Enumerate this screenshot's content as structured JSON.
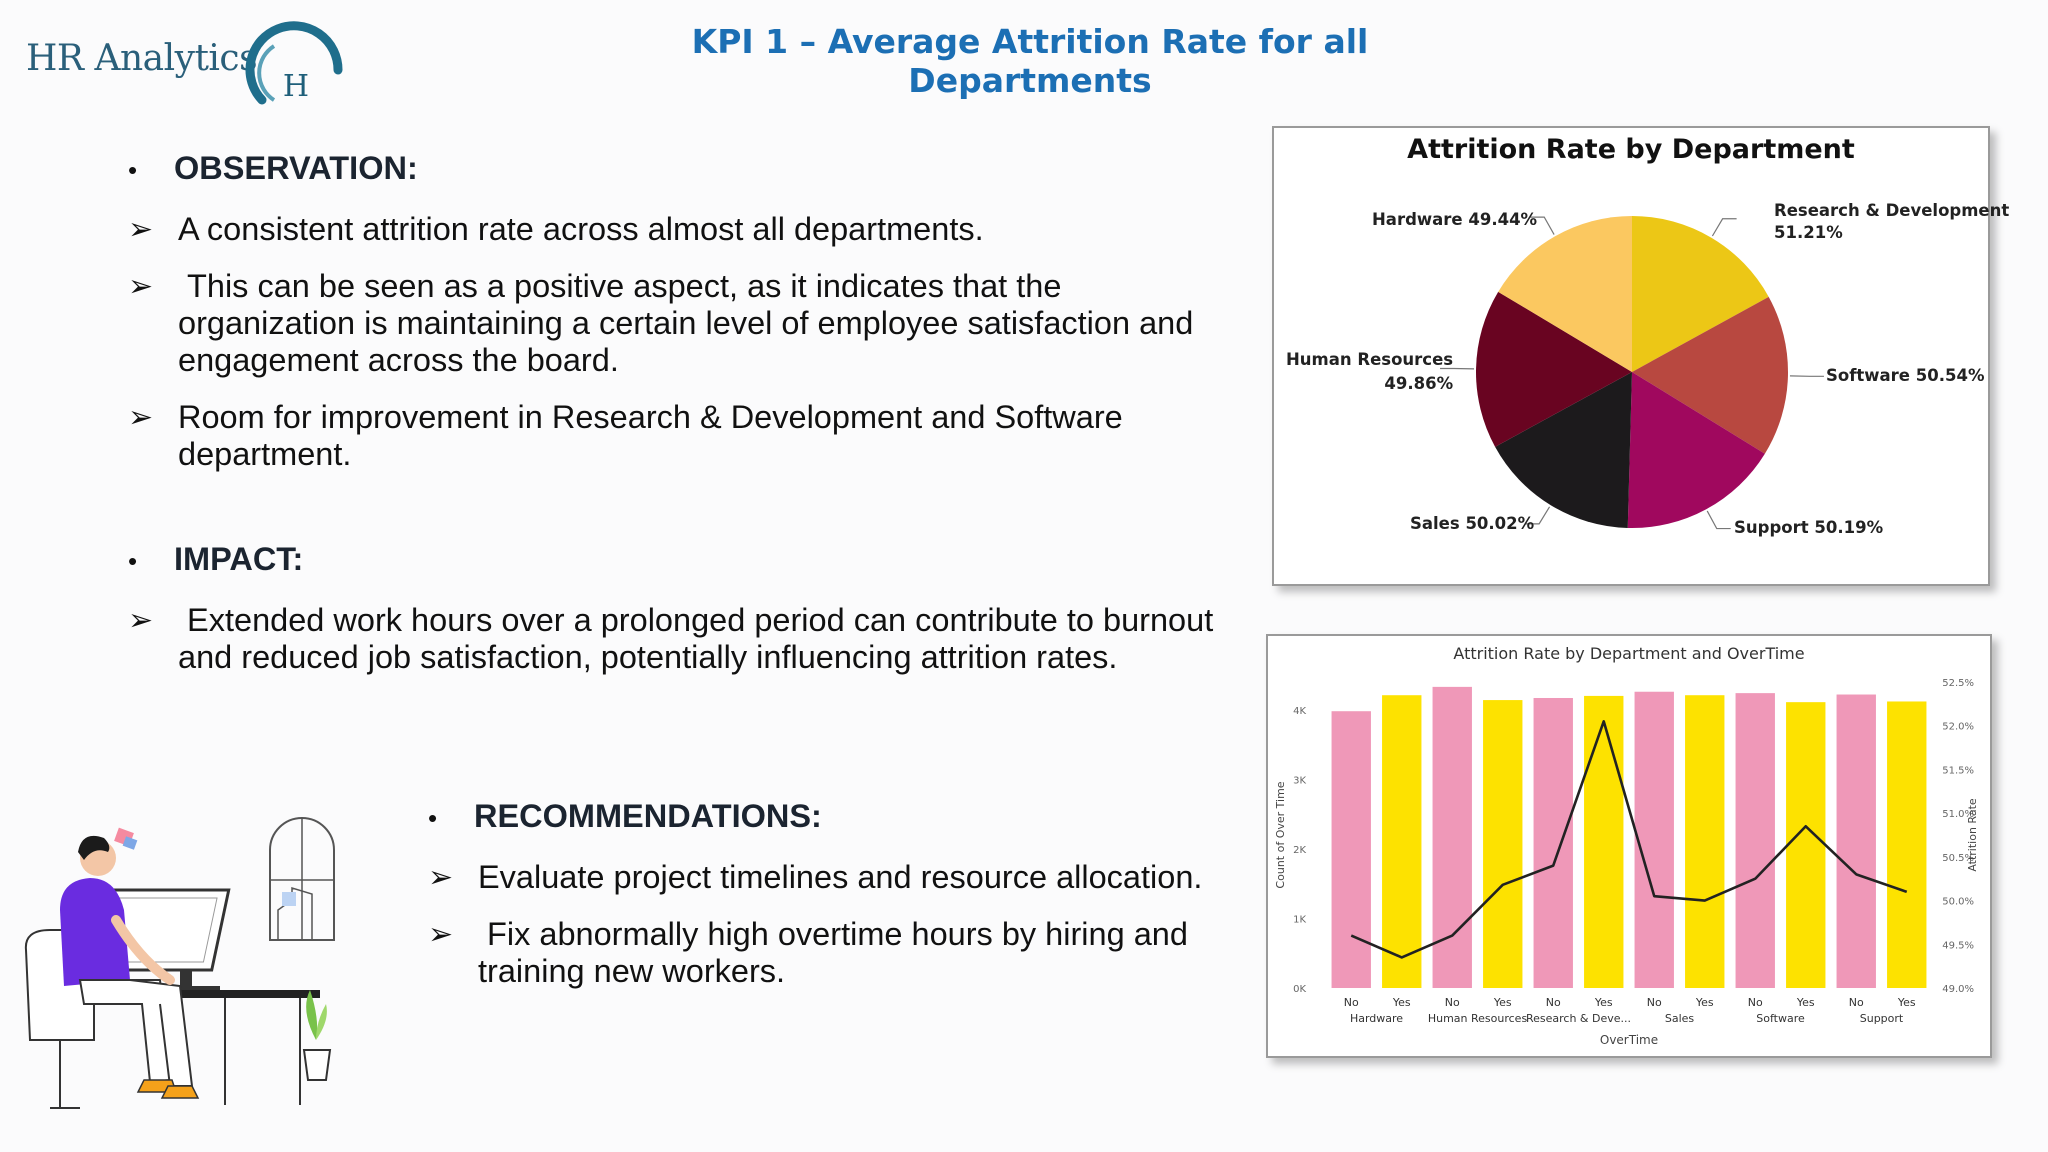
{
  "header": {
    "logo_text": "HR Analytics",
    "logo_letter": "H",
    "title": "KPI 1 – Average Attrition Rate for all Departments"
  },
  "observation": {
    "heading": "OBSERVATION:",
    "items": [
      "A consistent attrition rate across almost all departments.",
      " This can be seen as a positive aspect, as it indicates that the organization is maintaining a certain level of employee satisfaction and engagement across the board.",
      "Room for improvement in Research & Development and Software department."
    ]
  },
  "impact": {
    "heading": "IMPACT:",
    "items": [
      " Extended work hours over a prolonged period can contribute to burnout and reduced job satisfaction, potentially influencing attrition rates."
    ]
  },
  "recommendations": {
    "heading": "RECOMMENDATIONS:",
    "items": [
      "Evaluate project timelines and resource allocation.",
      " Fix abnormally high overtime hours by hiring and training new workers."
    ]
  },
  "chart_data": [
    {
      "type": "pie",
      "title": "Attrition Rate by Department",
      "slices": [
        {
          "label": "Research & Development",
          "value": 51.21,
          "display": "51.21%",
          "color": "#ecc716"
        },
        {
          "label": "Software",
          "value": 50.54,
          "display": "50.54%",
          "color": "#b84840"
        },
        {
          "label": "Support",
          "value": 50.19,
          "display": "50.19%",
          "color": "#a0085e"
        },
        {
          "label": "Sales",
          "value": 50.02,
          "display": "50.02%",
          "color": "#1c1a1c"
        },
        {
          "label": "Human Resources",
          "value": 49.86,
          "display": "49.86%",
          "color": "#690421"
        },
        {
          "label": "Hardware",
          "value": 49.44,
          "display": "49.44%",
          "color": "#fbc860"
        }
      ]
    },
    {
      "type": "bar",
      "title": "Attrition Rate by Department and OverTime",
      "xlabel": "OverTime",
      "ylabel": "Count of Over Time",
      "y2label": "Attrition Rate",
      "groups": [
        "Hardware",
        "Human Resources",
        "Research & Deve...",
        "Sales",
        "Software",
        "Support"
      ],
      "categories": [
        "No",
        "Yes",
        "No",
        "Yes",
        "No",
        "Yes",
        "No",
        "Yes",
        "No",
        "Yes",
        "No",
        "Yes"
      ],
      "ylim": [
        0,
        4400
      ],
      "yticks": [
        "0K",
        "1K",
        "2K",
        "3K",
        "4K"
      ],
      "y2lim": [
        49.0,
        52.5
      ],
      "y2ticks": [
        "49.0%",
        "49.5%",
        "50.0%",
        "50.5%",
        "51.0%",
        "51.5%",
        "52.0%",
        "52.5%"
      ],
      "bar_colors": {
        "No": "#ef98b8",
        "Yes": "#fde200"
      },
      "line_color": "#222222",
      "series": [
        {
          "name": "Count of Over Time",
          "values": [
            3980,
            4210,
            4330,
            4140,
            4170,
            4200,
            4260,
            4210,
            4240,
            4110,
            4220,
            4120
          ]
        },
        {
          "name": "Attrition Rate",
          "values": [
            49.6,
            49.35,
            49.6,
            50.18,
            50.4,
            52.05,
            50.05,
            50.0,
            50.25,
            50.85,
            50.3,
            50.1
          ]
        }
      ]
    }
  ]
}
